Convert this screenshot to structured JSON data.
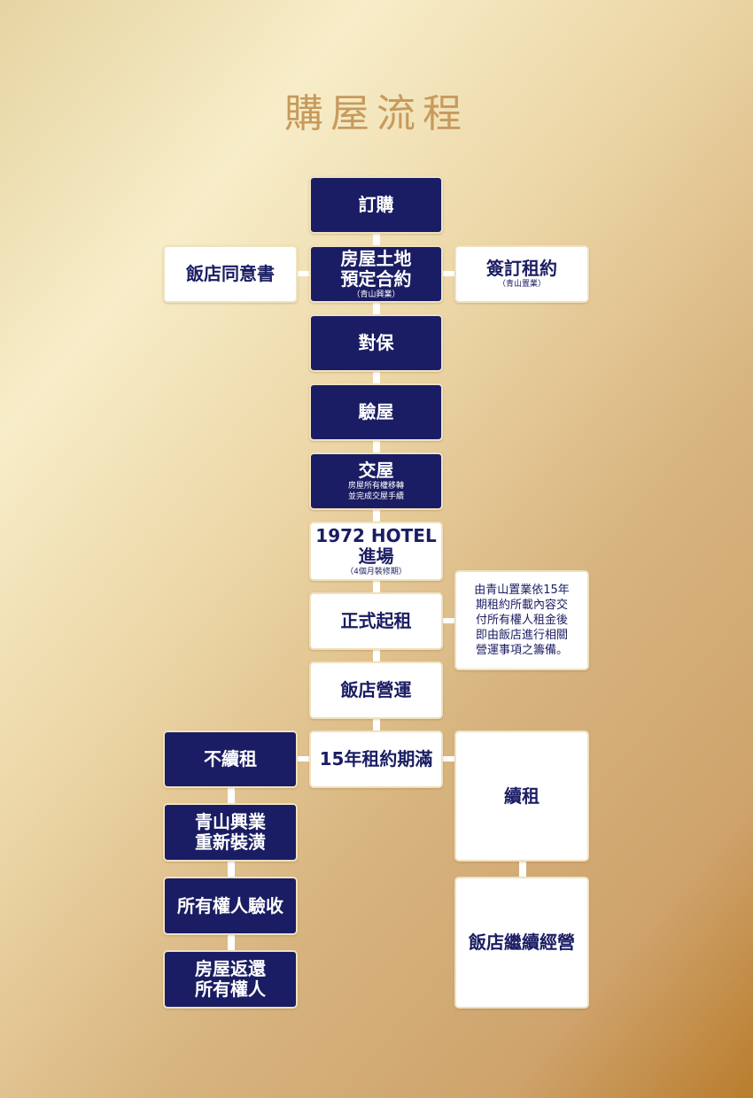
{
  "title": "購屋流程",
  "steps": {
    "order": {
      "label": "訂購"
    },
    "contract": {
      "label": "房屋土地\n預定合約",
      "note": "（青山興業）"
    },
    "hotel_consent": {
      "label": "飯店同意書"
    },
    "lease_sign": {
      "label": "簽訂租約",
      "note": "（青山置業）"
    },
    "insurance": {
      "label": "對保"
    },
    "inspection": {
      "label": "驗屋"
    },
    "handover": {
      "label": "交屋",
      "note": "房屋所有權移轉\n並完成交屋手續"
    },
    "hotel_entry": {
      "label": "1972 HOTEL\n進場",
      "note": "（4個月裝修期）"
    },
    "rent_start": {
      "label": "正式起租"
    },
    "rent_note": {
      "text": "由青山置業依15年期租約所載內容交付所有權人租金後即由飯店進行相關營運事項之籌備。"
    },
    "operation": {
      "label": "飯店營運"
    },
    "lease_expire": {
      "label": "15年租約期滿"
    },
    "no_renew": {
      "label": "不續租"
    },
    "renovation": {
      "label": "青山興業\n重新裝潢"
    },
    "owner_check": {
      "label": "所有權人驗收"
    },
    "return": {
      "label": "房屋返還\n所有權人"
    },
    "renew": {
      "label": "續租"
    },
    "continue_op": {
      "label": "飯店繼續經營"
    }
  },
  "colors": {
    "navy": "#1a1d63",
    "gold_title": "#c79a5c",
    "box_border": "#efe2c2"
  }
}
